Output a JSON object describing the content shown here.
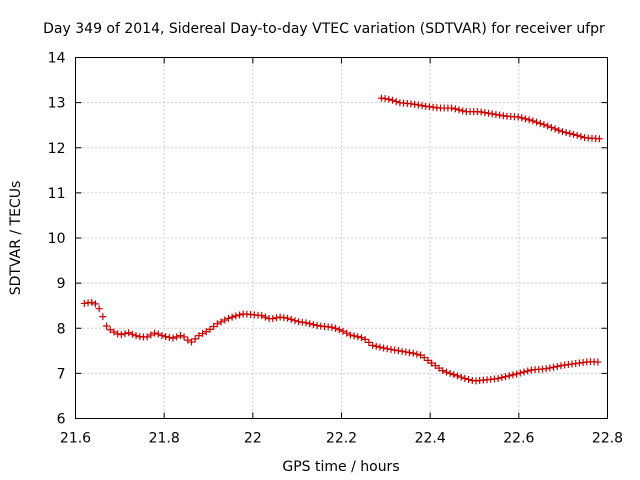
{
  "chart_data": {
    "type": "scatter",
    "title": "Day 349 of 2014, Sidereal Day-to-day VTEC variation (SDTVAR) for receiver ufpr",
    "xlabel": "GPS time / hours",
    "ylabel": "SDTVAR / TECUs",
    "xlim": [
      21.6,
      22.8
    ],
    "ylim": [
      6,
      14
    ],
    "xticks": [
      "21.6",
      "21.8",
      "22",
      "22.2",
      "22.4",
      "22.6",
      "22.8"
    ],
    "yticks": [
      "6",
      "7",
      "8",
      "9",
      "10",
      "11",
      "12",
      "13",
      "14"
    ],
    "grid": true,
    "marker": "+",
    "series": [
      {
        "name": "sdtvar-low",
        "color": "#cc0000",
        "anchors_x": [
          21.62,
          21.64,
          21.65,
          21.66,
          21.67,
          21.68,
          21.7,
          21.72,
          21.74,
          21.76,
          21.78,
          21.8,
          21.82,
          21.84,
          21.86,
          21.88,
          21.9,
          21.92,
          21.94,
          21.96,
          21.98,
          22.0,
          22.02,
          22.04,
          22.06,
          22.08,
          22.1,
          22.12,
          22.15,
          22.18,
          22.2,
          22.22,
          22.25,
          22.27,
          22.3,
          22.33,
          22.36,
          22.38,
          22.4,
          22.43,
          22.46,
          22.48,
          22.5,
          22.52,
          22.55,
          22.58,
          22.6,
          22.63,
          22.66,
          22.7,
          22.73,
          22.76,
          22.78
        ],
        "anchors_y": [
          8.55,
          8.58,
          8.5,
          8.3,
          8.05,
          7.95,
          7.85,
          7.9,
          7.82,
          7.8,
          7.9,
          7.82,
          7.78,
          7.85,
          7.68,
          7.85,
          7.95,
          8.1,
          8.2,
          8.27,
          8.32,
          8.3,
          8.28,
          8.2,
          8.25,
          8.22,
          8.15,
          8.12,
          8.05,
          8.02,
          7.95,
          7.85,
          7.78,
          7.62,
          7.55,
          7.5,
          7.45,
          7.4,
          7.25,
          7.05,
          6.95,
          6.88,
          6.83,
          6.85,
          6.88,
          6.95,
          7.0,
          7.08,
          7.1,
          7.18,
          7.22,
          7.26,
          7.25
        ]
      },
      {
        "name": "sdtvar-high",
        "color": "#cc0000",
        "anchors_x": [
          22.29,
          22.31,
          22.33,
          22.36,
          22.39,
          22.42,
          22.45,
          22.48,
          22.51,
          22.54,
          22.57,
          22.6,
          22.63,
          22.66,
          22.7,
          22.73,
          22.75,
          22.78
        ],
        "anchors_y": [
          13.1,
          13.07,
          13.0,
          12.97,
          12.92,
          12.88,
          12.88,
          12.8,
          12.8,
          12.75,
          12.7,
          12.68,
          12.6,
          12.5,
          12.35,
          12.28,
          12.22,
          12.2
        ]
      }
    ]
  }
}
